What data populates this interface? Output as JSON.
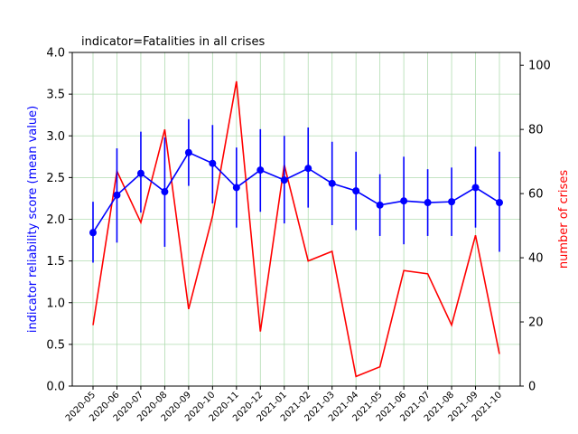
{
  "chart_data": {
    "type": "line",
    "title": "indicator=Fatalities in all crises",
    "ylabel_left": "indicator reliability score (mean value)",
    "ylabel_right": "number of crises",
    "x": [
      "2020-05",
      "2020-06",
      "2020-07",
      "2020-08",
      "2020-09",
      "2020-10",
      "2020-11",
      "2020-12",
      "2021-01",
      "2021-02",
      "2021-03",
      "2021-04",
      "2021-05",
      "2021-06",
      "2021-07",
      "2021-08",
      "2021-09",
      "2021-10"
    ],
    "ylim_left": [
      0,
      4
    ],
    "ylim_right": [
      0,
      104
    ],
    "yticks_left": [
      "0.0",
      "0.5",
      "1.0",
      "1.5",
      "2.0",
      "2.5",
      "3.0",
      "3.5",
      "4.0"
    ],
    "yticks_right": [
      "0",
      "20",
      "40",
      "60",
      "80",
      "100"
    ],
    "grid": true,
    "series": [
      {
        "axis": "left",
        "color": "#0000ff",
        "marker": "circle",
        "values": [
          1.84,
          2.29,
          2.55,
          2.33,
          2.8,
          2.67,
          2.38,
          2.59,
          2.47,
          2.61,
          2.43,
          2.34,
          2.17,
          2.22,
          2.2,
          2.21,
          2.38,
          2.2
        ],
        "error_low": [
          1.48,
          1.72,
          2.08,
          1.67,
          2.4,
          2.19,
          1.9,
          2.09,
          1.95,
          2.14,
          1.93,
          1.87,
          1.8,
          1.7,
          1.8,
          1.8,
          1.9,
          1.61
        ],
        "error_high": [
          2.21,
          2.85,
          3.05,
          2.98,
          3.2,
          3.13,
          2.86,
          3.08,
          3.0,
          3.1,
          2.93,
          2.81,
          2.54,
          2.75,
          2.6,
          2.62,
          2.87,
          2.81
        ]
      },
      {
        "axis": "right",
        "color": "#ff0000",
        "marker": "none",
        "values": [
          19,
          67,
          51,
          80,
          24,
          53,
          95,
          17,
          69,
          39,
          42,
          3,
          6,
          36,
          35,
          19,
          47,
          10
        ]
      }
    ]
  }
}
